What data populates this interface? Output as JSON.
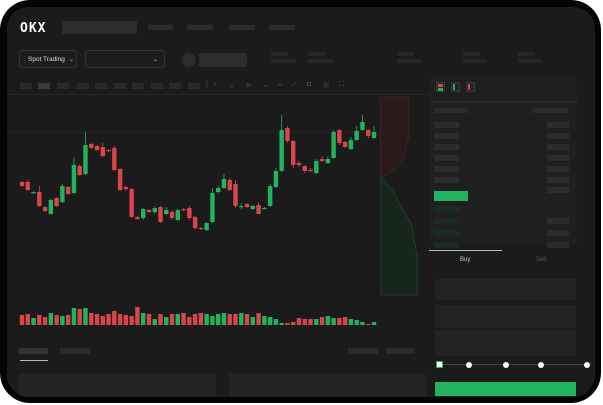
{
  "brand": {
    "logo": "OKX"
  },
  "toolbar": {
    "market_select": "Spot Trading",
    "chevron": "⌄"
  },
  "order_book": {
    "view_icons": [
      "book-both-icon",
      "book-bids-icon",
      "book-asks-icon"
    ]
  },
  "trade_panel": {
    "tabs": [
      {
        "label": "Buy",
        "active": true
      },
      {
        "label": "Sell",
        "active": false
      }
    ],
    "slider_percent": 0
  },
  "colors": {
    "up": "#22b35e",
    "down": "#d8454a",
    "background": "#1b1b1b"
  },
  "candles": [
    [
      68,
      69,
      63,
      64
    ],
    [
      68,
      70,
      59,
      60
    ],
    [
      57,
      59,
      56,
      58
    ],
    [
      58,
      64,
      43,
      44
    ],
    [
      43,
      44,
      38,
      39
    ],
    [
      36,
      51,
      35,
      50
    ],
    [
      52,
      53,
      43,
      44
    ],
    [
      48,
      66,
      47,
      64
    ],
    [
      63,
      64,
      55,
      56
    ],
    [
      57,
      93,
      56,
      85
    ],
    [
      84,
      86,
      74,
      75
    ],
    [
      76,
      118,
      75,
      105
    ],
    [
      106,
      107,
      101,
      102
    ],
    [
      104,
      105,
      99,
      100
    ],
    [
      103,
      107,
      93,
      94
    ],
    [
      100,
      101,
      98,
      99
    ],
    [
      102,
      104,
      79,
      80
    ],
    [
      81,
      82,
      59,
      60
    ],
    [
      63,
      64,
      59,
      61
    ],
    [
      61,
      62,
      32,
      33
    ],
    [
      33,
      34,
      30,
      31
    ],
    [
      32,
      42,
      30,
      41
    ],
    [
      40,
      41,
      37,
      38
    ],
    [
      38,
      44,
      36,
      42
    ],
    [
      43,
      44,
      27,
      28
    ],
    [
      36,
      43,
      35,
      40
    ],
    [
      38,
      40,
      30,
      32
    ],
    [
      30,
      41,
      29,
      40
    ],
    [
      41,
      42,
      39,
      40
    ],
    [
      42,
      44,
      30,
      32
    ],
    [
      33,
      34,
      20,
      22
    ],
    [
      22,
      23,
      20,
      21
    ],
    [
      20,
      28,
      19,
      27
    ],
    [
      28,
      62,
      27,
      57
    ],
    [
      58,
      64,
      57,
      62
    ],
    [
      62,
      76,
      61,
      71
    ],
    [
      70,
      72,
      59,
      60
    ],
    [
      66,
      70,
      42,
      44
    ],
    [
      43,
      47,
      41,
      44
    ],
    [
      46,
      47,
      42,
      43
    ],
    [
      41,
      45,
      40,
      44
    ],
    [
      45,
      48,
      36,
      36
    ],
    [
      42,
      43,
      41,
      42
    ],
    [
      44,
      66,
      43,
      64
    ],
    [
      63,
      82,
      62,
      79
    ],
    [
      79,
      135,
      78,
      120
    ],
    [
      122,
      124,
      107,
      109
    ],
    [
      109,
      110,
      82,
      85
    ],
    [
      87,
      89,
      83,
      85
    ],
    [
      84,
      85,
      77,
      79
    ],
    [
      80,
      82,
      78,
      79
    ],
    [
      77,
      91,
      76,
      89
    ],
    [
      91,
      94,
      88,
      89
    ],
    [
      87,
      94,
      86,
      91
    ],
    [
      92,
      120,
      91,
      118
    ],
    [
      120,
      121,
      105,
      107
    ],
    [
      108,
      109,
      102,
      103
    ],
    [
      101,
      113,
      100,
      110
    ],
    [
      110,
      124,
      109,
      119
    ],
    [
      120,
      135,
      119,
      128
    ],
    [
      120,
      121,
      112,
      114
    ],
    [
      112,
      124,
      111,
      118
    ]
  ],
  "volumes": [
    10,
    11,
    7,
    10,
    8,
    12,
    10,
    9,
    10,
    17,
    16,
    17,
    12,
    11,
    9,
    11,
    14,
    11,
    10,
    9,
    18,
    12,
    11,
    6,
    11,
    8,
    11,
    11,
    12,
    8,
    11,
    12,
    11,
    9,
    11,
    12,
    11,
    11,
    12,
    11,
    8,
    12,
    9,
    8,
    6,
    2,
    2,
    3,
    7,
    6,
    6,
    6,
    8,
    9,
    7,
    7,
    8,
    6,
    5,
    3,
    1,
    3
  ]
}
